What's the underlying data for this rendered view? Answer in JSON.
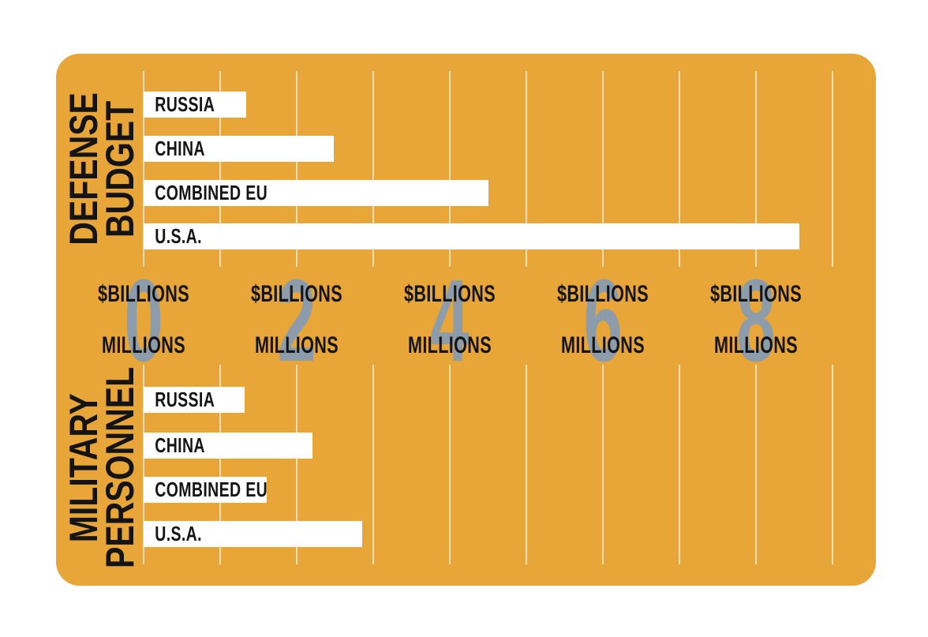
{
  "colors": {
    "page_bg": "#FFFFFF",
    "panel_bg": "#E7A637",
    "bar_fill": "#FFFFFF",
    "text": "#141414",
    "axis_number": "#8C9CAB",
    "gridline": "rgba(255,255,255,0.62)"
  },
  "chart_data": {
    "type": "bar",
    "orientation": "horizontal",
    "values_estimated_from_bar_lengths": true,
    "x_axis": {
      "tick_values": [
        0,
        2,
        4,
        6,
        8
      ],
      "tick_top_label": "$BILLIONS",
      "tick_bottom_label": "MILLIONS",
      "minor_gridline_step": 1,
      "range": [
        0,
        9
      ],
      "grid": "on"
    },
    "sections": [
      {
        "id": "defense-budget",
        "title": "DEFENSE BUDGET",
        "title_lines": [
          "DEFENSE",
          "BUDGET"
        ],
        "unit": "$ billions (USD)",
        "axis_units_per_gridline": 100,
        "categories": [
          "RUSSIA",
          "CHINA",
          "COMBINED EU",
          "U.S.A."
        ],
        "values": [
          134,
          248,
          450,
          857
        ]
      },
      {
        "id": "military-personnel",
        "title": "MILITARY PERSONNEL",
        "title_lines": [
          "MILITARY",
          "PERSONNEL"
        ],
        "unit": "millions of personnel",
        "axis_units_per_gridline": 1,
        "categories": [
          "RUSSIA",
          "CHINA",
          "COMBINED EU",
          "U.S.A."
        ],
        "values": [
          1.32,
          2.21,
          1.61,
          2.86
        ]
      }
    ]
  }
}
